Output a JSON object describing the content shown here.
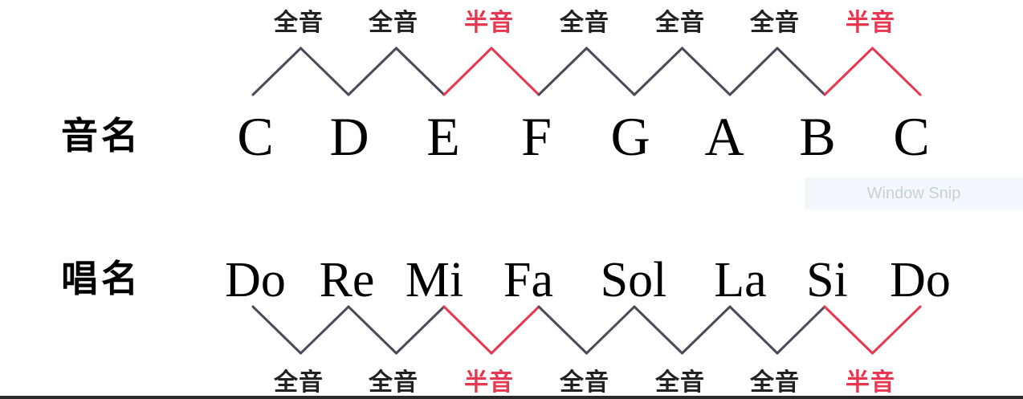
{
  "colors": {
    "whole": "#4a4a58",
    "half": "#e8384f",
    "text": "#000000"
  },
  "labels": {
    "letter_row": "音名",
    "solfege_row": "唱名"
  },
  "notes": [
    "C",
    "D",
    "E",
    "F",
    "G",
    "A",
    "B",
    "C"
  ],
  "solfege": [
    "Do",
    "Re",
    "Mi",
    "Fa",
    "Sol",
    "La",
    "Si",
    "Do"
  ],
  "intervals": [
    {
      "label": "全音",
      "kind": "whole"
    },
    {
      "label": "全音",
      "kind": "whole"
    },
    {
      "label": "半音",
      "kind": "half"
    },
    {
      "label": "全音",
      "kind": "whole"
    },
    {
      "label": "全音",
      "kind": "whole"
    },
    {
      "label": "全音",
      "kind": "whole"
    },
    {
      "label": "半音",
      "kind": "half"
    }
  ],
  "watermark": "Window Snip"
}
